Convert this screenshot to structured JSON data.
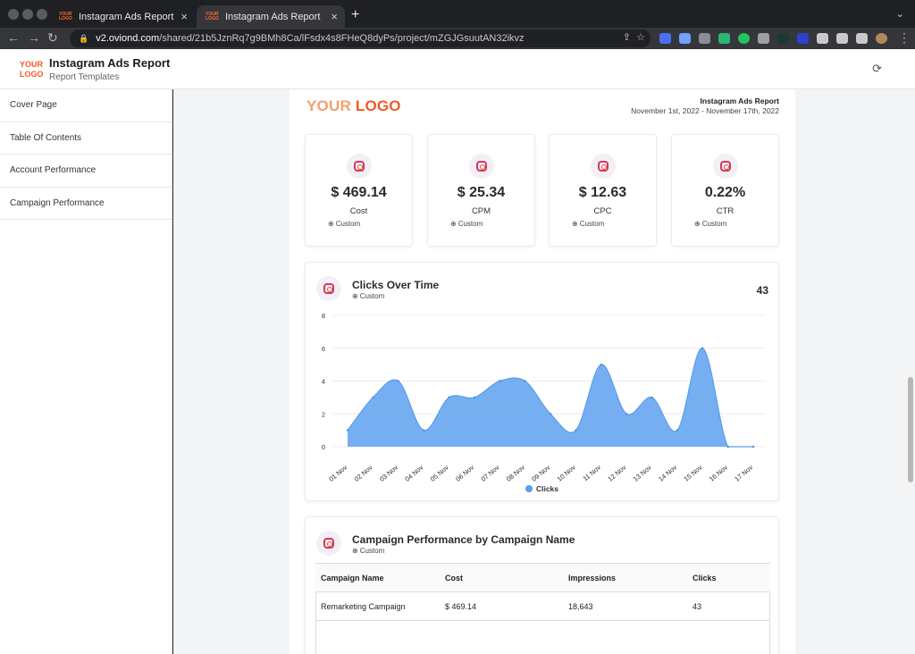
{
  "browser": {
    "tabs": [
      {
        "title": "Instagram Ads Report",
        "favicon": "YOUR LOGO"
      },
      {
        "title": "Instagram Ads Report",
        "favicon": "YOUR LOGO"
      }
    ],
    "url_host": "v2.oviond.com",
    "url_path": "/shared/21b5JznRq7g9BMh8Ca/lFsdx4s8FHeQ8dyPs/project/mZGJGsuutAN32ikvz"
  },
  "app": {
    "logo_line1": "YOUR",
    "logo_line2": "LOGO",
    "title": "Instagram Ads Report",
    "subtitle": "Report Templates"
  },
  "sidebar": {
    "items": [
      {
        "label": "Cover Page"
      },
      {
        "label": "Table Of Contents"
      },
      {
        "label": "Account Performance"
      },
      {
        "label": "Campaign Performance"
      }
    ]
  },
  "report": {
    "logo_your": "YOUR",
    "logo_logo": "LOGO",
    "title": "Instagram Ads Report",
    "dates": "November 1st, 2022 - November 17th, 2022",
    "kpis": [
      {
        "value": "$ 469.14",
        "label": "Cost",
        "sub": "Custom"
      },
      {
        "value": "$ 25.34",
        "label": "CPM",
        "sub": "Custom"
      },
      {
        "value": "$ 12.63",
        "label": "CPC",
        "sub": "Custom"
      },
      {
        "value": "0.22%",
        "label": "CTR",
        "sub": "Custom"
      }
    ],
    "clicks_chart": {
      "title": "Clicks Over Time",
      "sub": "Custom",
      "total": "43",
      "legend": "Clicks"
    },
    "campaign_table": {
      "title": "Campaign Performance by Campaign Name",
      "sub": "Custom",
      "headers": [
        "Campaign Name",
        "Cost",
        "Impressions",
        "Clicks"
      ],
      "rows": [
        [
          "Remarketing Campaign",
          "$ 469.14",
          "18,643",
          "43"
        ]
      ]
    }
  },
  "colors": {
    "accent_orange": "#f05a28",
    "chart_blue": "#5a9ded"
  },
  "chart_data": {
    "type": "area",
    "title": "Clicks Over Time",
    "categories": [
      "01 Nov",
      "02 Nov",
      "03 Nov",
      "04 Nov",
      "05 Nov",
      "06 Nov",
      "07 Nov",
      "08 Nov",
      "09 Nov",
      "10 Nov",
      "11 Nov",
      "12 Nov",
      "13 Nov",
      "14 Nov",
      "15 Nov",
      "16 Nov",
      "17 Nov"
    ],
    "series": [
      {
        "name": "Clicks",
        "values": [
          1,
          3,
          4,
          1,
          3,
          3,
          4,
          4,
          2,
          1,
          5,
          2,
          3,
          1,
          6,
          0,
          0
        ]
      }
    ],
    "yticks": [
      "0",
      "2",
      "4",
      "6",
      "8"
    ],
    "ylim": [
      0,
      8
    ],
    "grid": true,
    "legend": "bottom-center"
  }
}
